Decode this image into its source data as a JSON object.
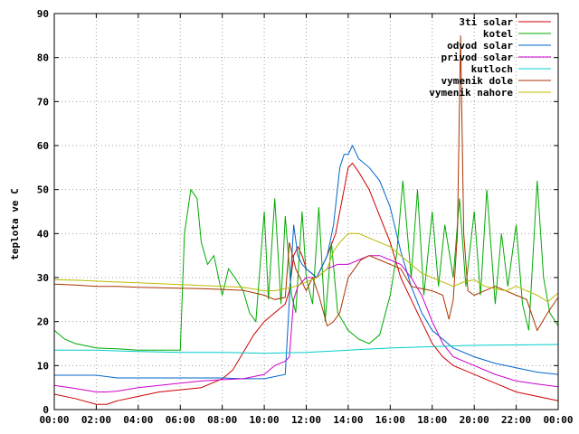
{
  "chart_data": {
    "type": "line",
    "ylabel": "teplota ve C",
    "xlim": [
      0,
      24
    ],
    "ylim": [
      0,
      90
    ],
    "x_ticks": [
      "00:00",
      "02:00",
      "04:00",
      "06:00",
      "08:00",
      "10:00",
      "12:00",
      "14:00",
      "16:00",
      "18:00",
      "20:00",
      "22:00",
      "00:00"
    ],
    "y_ticks": [
      "0",
      "10",
      "20",
      "30",
      "40",
      "50",
      "60",
      "70",
      "80",
      "90"
    ],
    "grid": true,
    "legend_position": "top-right",
    "series": [
      {
        "name": "3ti solar",
        "color": "#cc0000",
        "x": [
          0,
          1,
          2,
          2.5,
          3,
          4,
          5,
          6,
          7,
          7.5,
          8,
          8.5,
          9,
          9.5,
          10,
          10.5,
          11,
          11.2,
          11.4,
          11.6,
          11.8,
          12,
          12.5,
          13,
          13.4,
          13.8,
          14,
          14.2,
          14.5,
          15,
          15.5,
          16,
          16.5,
          17,
          17.5,
          18,
          18.5,
          19,
          20,
          21,
          22,
          23,
          24
        ],
        "y": [
          3.5,
          2.5,
          1.2,
          1.2,
          2,
          3,
          4,
          4.5,
          5,
          6,
          7,
          9,
          13,
          17,
          20,
          22,
          24,
          27,
          35,
          37,
          35,
          32,
          30,
          35,
          40,
          50,
          55,
          56,
          54,
          50,
          44,
          38,
          30,
          25,
          20,
          15,
          12,
          10,
          8,
          6,
          4,
          3,
          2
        ]
      },
      {
        "name": "kotel",
        "color": "#00aa00",
        "x": [
          0,
          0.5,
          1,
          1.5,
          2,
          3,
          4,
          5,
          6,
          6.2,
          6.5,
          6.8,
          7,
          7.3,
          7.6,
          8,
          8.3,
          8.6,
          9,
          9.3,
          9.6,
          10,
          10.2,
          10.5,
          10.8,
          11,
          11.3,
          11.5,
          11.8,
          12,
          12.3,
          12.6,
          12.9,
          13.2,
          13.5,
          14,
          14.5,
          15,
          15.5,
          16,
          16.3,
          16.6,
          17,
          17.3,
          17.6,
          18,
          18.3,
          18.6,
          19,
          19.3,
          19.6,
          20,
          20.3,
          20.6,
          21,
          21.3,
          21.6,
          22,
          22.3,
          22.6,
          23,
          23.3,
          23.6,
          24
        ],
        "y": [
          18,
          16,
          15,
          14.5,
          14,
          13.8,
          13.5,
          13.5,
          13.5,
          40,
          50,
          48,
          38,
          33,
          35,
          26,
          32,
          30,
          27,
          22,
          20,
          45,
          25,
          48,
          24,
          44,
          26,
          22,
          45,
          30,
          24,
          46,
          20,
          38,
          22,
          18,
          16,
          15,
          17,
          26,
          35,
          52,
          30,
          50,
          26,
          45,
          28,
          42,
          30,
          48,
          28,
          45,
          26,
          50,
          24,
          40,
          28,
          42,
          24,
          18,
          52,
          30,
          22,
          19
        ]
      },
      {
        "name": "odvod solar",
        "color": "#0066cc",
        "x": [
          0,
          1,
          2,
          2.5,
          3,
          4,
          5,
          6,
          7,
          8,
          9,
          10,
          10.5,
          11,
          11.2,
          11.4,
          11.6,
          11.8,
          12,
          12.5,
          13,
          13.3,
          13.6,
          13.8,
          14,
          14.2,
          14.5,
          15,
          15.5,
          16,
          16.5,
          17,
          17.5,
          18,
          19,
          20,
          21,
          22,
          23,
          24
        ],
        "y": [
          7.8,
          7.8,
          7.8,
          7.5,
          7.2,
          7.2,
          7.2,
          7.2,
          7.2,
          7.2,
          7,
          7,
          7.5,
          8,
          25,
          42,
          35,
          33,
          32,
          30,
          35,
          42,
          55,
          58,
          58,
          60,
          57,
          55,
          52,
          46,
          36,
          28,
          22,
          18,
          14,
          12,
          10.5,
          9.5,
          8.5,
          8
        ]
      },
      {
        "name": "privod solar",
        "color": "#cc00cc",
        "x": [
          0,
          1,
          2,
          2.5,
          3,
          4,
          5,
          6,
          7,
          8,
          9,
          10,
          10.5,
          11,
          11.2,
          11.4,
          11.6,
          12,
          12.5,
          13,
          13.5,
          14,
          14.5,
          15,
          15.5,
          16,
          16.5,
          17,
          17.5,
          18,
          18.5,
          19,
          20,
          21,
          22,
          23,
          24
        ],
        "y": [
          5.5,
          4.8,
          4,
          4,
          4.2,
          5,
          5.5,
          6,
          6.5,
          6.8,
          7,
          8,
          10,
          11,
          12,
          25,
          28,
          30,
          30,
          32,
          33,
          33,
          34,
          35,
          35,
          34,
          33,
          30,
          26,
          20,
          15,
          12,
          10,
          8,
          6.5,
          5.8,
          5.2
        ]
      },
      {
        "name": "kutloch",
        "color": "#00cccc",
        "x": [
          0,
          2,
          4,
          6,
          8,
          10,
          12,
          14,
          16,
          18,
          20,
          22,
          24
        ],
        "y": [
          13.5,
          13.5,
          13.2,
          13,
          13,
          12.8,
          13,
          13.5,
          14,
          14.3,
          14.6,
          14.7,
          14.8
        ]
      },
      {
        "name": "vymenik dole",
        "color": "#aa3300",
        "x": [
          0,
          1,
          2,
          3,
          4,
          5,
          6,
          7,
          8,
          9,
          10,
          10.5,
          11,
          11.2,
          11.5,
          12,
          12.3,
          12.6,
          13,
          13.3,
          13.6,
          14,
          14.3,
          14.6,
          15,
          15.5,
          16,
          16.5,
          17,
          17.5,
          18,
          18.5,
          18.8,
          19,
          19.2,
          19.35,
          19.5,
          19.7,
          20,
          20.5,
          21,
          21.5,
          22,
          22.5,
          23,
          23.5,
          24
        ],
        "y": [
          28.5,
          28.3,
          28,
          28,
          27.8,
          27.7,
          27.6,
          27.5,
          27.3,
          27.1,
          26,
          25,
          25.5,
          38,
          32,
          27,
          30,
          26,
          19,
          20,
          22,
          30,
          32,
          34,
          35,
          34,
          33,
          32,
          28,
          27.5,
          27,
          26,
          20.5,
          25,
          40,
          85,
          40,
          27,
          26,
          27,
          28,
          27,
          26,
          25,
          18,
          22,
          25.5
        ]
      },
      {
        "name": "vymenik nahore",
        "color": "#bbbb00",
        "x": [
          0,
          1,
          2,
          3,
          4,
          5,
          6,
          7,
          8,
          9,
          10,
          10.5,
          11,
          11.5,
          12,
          12.5,
          13,
          13.3,
          13.6,
          14,
          14.5,
          15,
          15.5,
          16,
          16.5,
          17,
          17.5,
          18,
          18.5,
          19,
          19.5,
          20,
          20.5,
          21,
          21.5,
          22,
          22.5,
          23,
          23.5,
          24
        ],
        "y": [
          29.5,
          29.4,
          29.2,
          29,
          28.8,
          28.6,
          28.4,
          28.2,
          28,
          27.8,
          27,
          27,
          27.5,
          28,
          29,
          30,
          32,
          36,
          38,
          40,
          40,
          39,
          38,
          37,
          35,
          33,
          31,
          30,
          29,
          28,
          29,
          29.5,
          28,
          27.5,
          27,
          28,
          27,
          26,
          24.5,
          26.5
        ]
      }
    ]
  }
}
